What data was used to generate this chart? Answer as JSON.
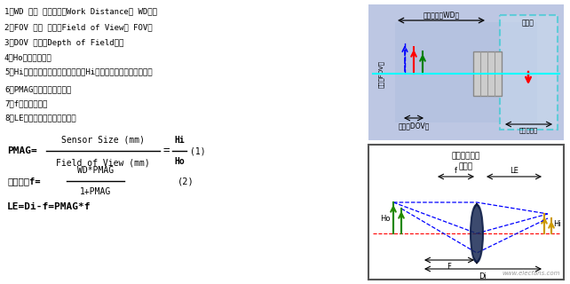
{
  "bg_color": "#ffffff",
  "text_color": "#000000",
  "left_lines": [
    "1、WD 物距 工作距离（Work Distance； WD）。",
    "2、FOV 视场 视野（Field of View； FOV）",
    "3、DOV 景深（Depth of Field）。",
    "4、Ho：视野的高度",
    "5、Hi：摄像机有效成像面的高度（Hi来代表传感器像面的大小）",
    "6、PMAG：镜头的放大倍数",
    "7、f：镜头的焦距",
    "8、LE：镜头像平面的扩充距离"
  ],
  "diag1_wd": "工作距离（WD）",
  "diag1_fov": "视野（FOV）",
  "diag1_dov": "景深（DOV）",
  "diag1_imgface": "成像面",
  "diag1_imgdist": "成像面距离",
  "diag2_title1": "镜头几何关系",
  "diag2_title2": "薄镜头",
  "watermark": "www.elecfans.com"
}
